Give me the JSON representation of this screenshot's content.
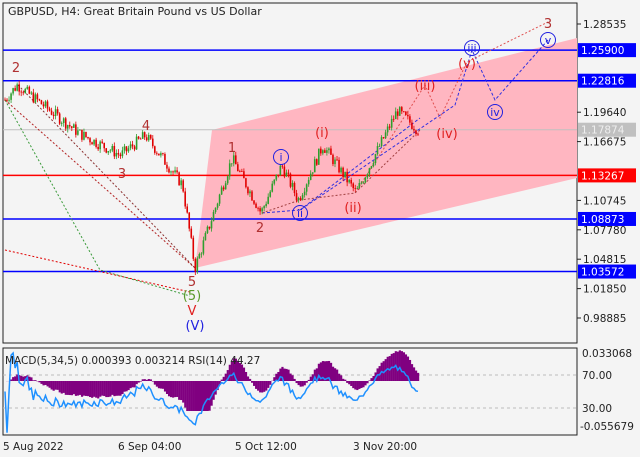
{
  "header": {
    "symbol_title": "GBPUSD, H4:  Great Britain Pound vs US Dollar"
  },
  "indicator": {
    "label": "MACD(5,34,5) 0.000393 0.003214 RSI(14) 44.27",
    "axis_ticks": [
      "0.033068",
      "70.00",
      "30.00",
      "-0.055679"
    ]
  },
  "colors": {
    "up": "#2e9e2e",
    "down": "#e00000",
    "channel": "#ffb6c1",
    "support_blue": "#0000ff",
    "key_red": "#ff0000",
    "macd": "#800080",
    "rsi": "#1e90ff"
  },
  "chart_data": {
    "type": "candlestick",
    "symbol": "GBPUSD",
    "timeframe": "H4",
    "ylim": [
      0.965,
      1.3
    ],
    "y_ticks": [
      "1.28535",
      "1.19640",
      "1.16675",
      "1.10745",
      "1.07780",
      "1.04815",
      "1.01850",
      "0.98885"
    ],
    "x_ticks": [
      "5 Aug 2022",
      "6 Sep 04:00",
      "5 Oct 12:00",
      "3 Nov 20:00"
    ],
    "price_path_pivots": [
      {
        "t": 0,
        "p": 1.209
      },
      {
        "t": 0.03,
        "p": 1.224
      },
      {
        "t": 0.18,
        "p": 1.175
      },
      {
        "t": 0.28,
        "p": 1.153
      },
      {
        "t": 0.34,
        "p": 1.173
      },
      {
        "t": 0.43,
        "p": 1.123
      },
      {
        "t": 0.46,
        "p": 1.039
      },
      {
        "t": 0.55,
        "p": 1.15
      },
      {
        "t": 0.62,
        "p": 1.095
      },
      {
        "t": 0.67,
        "p": 1.143
      },
      {
        "t": 0.71,
        "p": 1.108
      },
      {
        "t": 0.77,
        "p": 1.163
      },
      {
        "t": 0.85,
        "p": 1.115
      },
      {
        "t": 0.95,
        "p": 1.198
      },
      {
        "t": 1.0,
        "p": 1.1787
      }
    ],
    "levels": [
      {
        "value": 1.259,
        "label": "1.25900",
        "color": "blue"
      },
      {
        "value": 1.22816,
        "label": "1.22816",
        "color": "blue"
      },
      {
        "value": 1.17874,
        "label": "1.17874",
        "color": "gray"
      },
      {
        "value": 1.13267,
        "label": "1.13267",
        "color": "red"
      },
      {
        "value": 1.08873,
        "label": "1.08873",
        "color": "blue"
      },
      {
        "value": 1.03572,
        "label": "1.03572",
        "color": "blue"
      }
    ],
    "wave_labels": [
      {
        "text": "2",
        "style": "brown"
      },
      {
        "text": "4",
        "style": "brown"
      },
      {
        "text": "3",
        "style": "brown"
      },
      {
        "text": "5",
        "style": "brown"
      },
      {
        "text": "(5)",
        "style": "green"
      },
      {
        "text": "V",
        "style": "red"
      },
      {
        "text": "(V)",
        "style": "blue"
      },
      {
        "text": "1",
        "style": "brown"
      },
      {
        "text": "2",
        "style": "brown"
      },
      {
        "text": "i",
        "style": "circle"
      },
      {
        "text": "ii",
        "style": "circle"
      },
      {
        "text": "(i)",
        "style": "red"
      },
      {
        "text": "(ii)",
        "style": "red"
      },
      {
        "text": "(iii)",
        "style": "red"
      },
      {
        "text": "(iv)",
        "style": "red"
      },
      {
        "text": "(v)",
        "style": "red"
      },
      {
        "text": "iii",
        "style": "circle"
      },
      {
        "text": "iv",
        "style": "circle"
      },
      {
        "text": "v",
        "style": "circle"
      },
      {
        "text": "3",
        "style": "brown"
      }
    ]
  }
}
